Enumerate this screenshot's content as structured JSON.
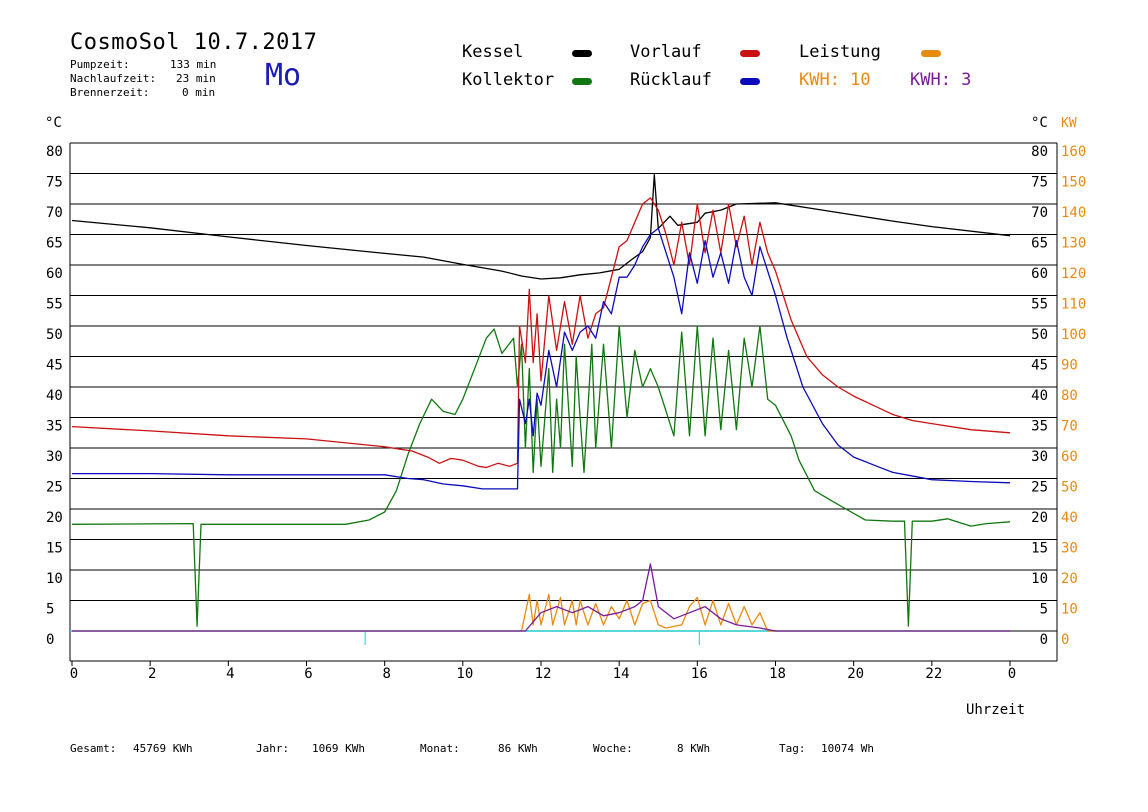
{
  "header": {
    "title": "CosmoSol 10.7.2017",
    "day": "Mo",
    "stats": [
      {
        "label": "Pumpzeit:",
        "value": "133 min"
      },
      {
        "label": "Nachlaufzeit:",
        "value": "23 min"
      },
      {
        "label": "Brennerzeit:",
        "value": "0 min"
      }
    ]
  },
  "legend": {
    "kessel": "Kessel",
    "kollektor": "Kollektor",
    "vorlauf": "Vorlauf",
    "ruecklauf": "Rücklauf",
    "leistung": "Leistung",
    "kwh1": "KWH: 10",
    "kwh2": "KWH: 3"
  },
  "footer": {
    "gesamt_label": "Gesamt:",
    "gesamt_value": "45769 KWh",
    "jahr_label": "Jahr:",
    "jahr_value": "1069 KWh",
    "monat_label": "Monat:",
    "monat_value": "86 KWh",
    "woche_label": "Woche:",
    "woche_value": "8 KWh",
    "tag_label": "Tag:",
    "tag_value": "10074 Wh"
  },
  "colors": {
    "kessel": "#000000",
    "kollektor": "#117711",
    "vorlauf": "#cc1111",
    "ruecklauf": "#0b0bbb",
    "leistung": "#e88a10",
    "kwh2": "#7a1a9a",
    "zero_line": "#22cccc"
  },
  "chart_data": {
    "type": "line",
    "xlabel": "Uhrzeit",
    "ylabel_left": "°C",
    "ylabel_right": "°C",
    "ylabel_right2": "KW",
    "xlim": [
      0,
      24
    ],
    "ylim": [
      0,
      80
    ],
    "x_ticks": [
      "0",
      "2",
      "4",
      "6",
      "8",
      "10",
      "12",
      "14",
      "16",
      "18",
      "20",
      "22",
      "0"
    ],
    "y_ticks": [
      "0",
      "5",
      "10",
      "15",
      "20",
      "25",
      "30",
      "35",
      "40",
      "45",
      "50",
      "55",
      "60",
      "65",
      "70",
      "75",
      "80"
    ],
    "y2_ticks": [
      "0",
      "10",
      "20",
      "30",
      "40",
      "50",
      "60",
      "70",
      "80",
      "90",
      "100",
      "110",
      "120",
      "130",
      "140",
      "150",
      "160"
    ],
    "grid": true,
    "series": [
      {
        "name": "Kessel",
        "points": [
          [
            0,
            67.3
          ],
          [
            2,
            66.1
          ],
          [
            4,
            64.6
          ],
          [
            6,
            63.2
          ],
          [
            8,
            61.9
          ],
          [
            9,
            61.3
          ],
          [
            10,
            60.1
          ],
          [
            11,
            59.0
          ],
          [
            11.5,
            58.2
          ],
          [
            12,
            57.7
          ],
          [
            12.5,
            57.9
          ],
          [
            13,
            58.4
          ],
          [
            13.5,
            58.7
          ],
          [
            14,
            59.3
          ],
          [
            14.3,
            60.8
          ],
          [
            14.6,
            62.2
          ],
          [
            14.8,
            64.5
          ],
          [
            14.9,
            74.8
          ],
          [
            15.0,
            66.0
          ],
          [
            15.3,
            68.0
          ],
          [
            15.5,
            66.5
          ],
          [
            16,
            67.0
          ],
          [
            16.2,
            68.5
          ],
          [
            16.6,
            69.0
          ],
          [
            17,
            70.0
          ],
          [
            18,
            70.2
          ],
          [
            19,
            69.2
          ],
          [
            20,
            68.2
          ],
          [
            21,
            67.2
          ],
          [
            22,
            66.3
          ],
          [
            24,
            64.8
          ]
        ]
      },
      {
        "name": "Kollektor",
        "points": [
          [
            0,
            17.5
          ],
          [
            3.1,
            17.6
          ],
          [
            3.2,
            0.8
          ],
          [
            3.3,
            17.5
          ],
          [
            7,
            17.5
          ],
          [
            7.6,
            18.2
          ],
          [
            8,
            19.5
          ],
          [
            8.3,
            23
          ],
          [
            8.6,
            29
          ],
          [
            8.9,
            34
          ],
          [
            9.2,
            38
          ],
          [
            9.5,
            36
          ],
          [
            9.8,
            35.5
          ],
          [
            10,
            38
          ],
          [
            10.3,
            43
          ],
          [
            10.6,
            48
          ],
          [
            10.8,
            49.5
          ],
          [
            11,
            45.5
          ],
          [
            11.3,
            48
          ],
          [
            11.4,
            40
          ],
          [
            11.5,
            47
          ],
          [
            11.6,
            30
          ],
          [
            11.7,
            43
          ],
          [
            11.8,
            26
          ],
          [
            11.9,
            38
          ],
          [
            12,
            27
          ],
          [
            12.2,
            43
          ],
          [
            12.3,
            26
          ],
          [
            12.4,
            38
          ],
          [
            12.5,
            30
          ],
          [
            12.6,
            47
          ],
          [
            12.8,
            27
          ],
          [
            12.9,
            45
          ],
          [
            13,
            35
          ],
          [
            13.1,
            26
          ],
          [
            13.3,
            47
          ],
          [
            13.4,
            30
          ],
          [
            13.6,
            47
          ],
          [
            13.8,
            30
          ],
          [
            14,
            50
          ],
          [
            14.2,
            35
          ],
          [
            14.4,
            46
          ],
          [
            14.6,
            40
          ],
          [
            14.8,
            43
          ],
          [
            15,
            40
          ],
          [
            15.2,
            36
          ],
          [
            15.4,
            32
          ],
          [
            15.6,
            49
          ],
          [
            15.8,
            32
          ],
          [
            16,
            50
          ],
          [
            16.2,
            32
          ],
          [
            16.4,
            48
          ],
          [
            16.6,
            33
          ],
          [
            16.8,
            46
          ],
          [
            17,
            33
          ],
          [
            17.2,
            48
          ],
          [
            17.4,
            40
          ],
          [
            17.6,
            50
          ],
          [
            17.8,
            38
          ],
          [
            18,
            37
          ],
          [
            18.4,
            32
          ],
          [
            18.6,
            28
          ],
          [
            19,
            23
          ],
          [
            19.4,
            21.5
          ],
          [
            19.8,
            20
          ],
          [
            20.3,
            18.2
          ],
          [
            21,
            18
          ],
          [
            21.3,
            18
          ],
          [
            21.4,
            0.8
          ],
          [
            21.5,
            18
          ],
          [
            22,
            18
          ],
          [
            22.4,
            18.4
          ],
          [
            23,
            17.2
          ],
          [
            23.4,
            17.6
          ],
          [
            24,
            17.9
          ]
        ]
      },
      {
        "name": "Vorlauf",
        "points": [
          [
            0,
            33.5
          ],
          [
            2,
            32.8
          ],
          [
            4,
            32
          ],
          [
            6,
            31.5
          ],
          [
            8,
            30.2
          ],
          [
            8.7,
            29.5
          ],
          [
            9.1,
            28.5
          ],
          [
            9.4,
            27.5
          ],
          [
            9.7,
            28.3
          ],
          [
            10,
            28
          ],
          [
            10.4,
            27
          ],
          [
            10.6,
            26.8
          ],
          [
            10.9,
            27.5
          ],
          [
            11.2,
            27
          ],
          [
            11.4,
            27.5
          ],
          [
            11.45,
            50
          ],
          [
            11.6,
            44
          ],
          [
            11.7,
            56
          ],
          [
            11.8,
            44
          ],
          [
            11.9,
            52
          ],
          [
            12,
            41
          ],
          [
            12.2,
            55
          ],
          [
            12.4,
            46
          ],
          [
            12.6,
            54
          ],
          [
            12.8,
            47
          ],
          [
            13,
            55
          ],
          [
            13.2,
            48
          ],
          [
            13.4,
            52
          ],
          [
            13.6,
            53
          ],
          [
            13.8,
            58
          ],
          [
            14,
            63
          ],
          [
            14.2,
            64
          ],
          [
            14.4,
            67
          ],
          [
            14.6,
            70
          ],
          [
            14.8,
            71
          ],
          [
            15,
            69
          ],
          [
            15.2,
            65
          ],
          [
            15.4,
            60
          ],
          [
            15.6,
            67
          ],
          [
            15.8,
            60
          ],
          [
            16,
            70
          ],
          [
            16.2,
            62
          ],
          [
            16.4,
            69
          ],
          [
            16.6,
            62
          ],
          [
            16.8,
            70
          ],
          [
            17,
            63
          ],
          [
            17.2,
            68
          ],
          [
            17.4,
            60
          ],
          [
            17.6,
            67
          ],
          [
            17.8,
            62
          ],
          [
            18,
            59
          ],
          [
            18.4,
            51
          ],
          [
            18.8,
            45
          ],
          [
            19.2,
            42
          ],
          [
            19.6,
            40
          ],
          [
            20,
            38.5
          ],
          [
            20.5,
            37
          ],
          [
            21,
            35.5
          ],
          [
            21.5,
            34.5
          ],
          [
            22,
            34
          ],
          [
            23,
            33
          ],
          [
            24,
            32.5
          ]
        ]
      },
      {
        "name": "Rücklauf",
        "points": [
          [
            0,
            25.8
          ],
          [
            2,
            25.8
          ],
          [
            4,
            25.6
          ],
          [
            6,
            25.6
          ],
          [
            8,
            25.6
          ],
          [
            8.6,
            25
          ],
          [
            9,
            24.8
          ],
          [
            9.5,
            24.1
          ],
          [
            10,
            23.8
          ],
          [
            10.5,
            23.3
          ],
          [
            11.4,
            23.3
          ],
          [
            11.45,
            38
          ],
          [
            11.6,
            34
          ],
          [
            11.7,
            38
          ],
          [
            11.8,
            32
          ],
          [
            11.9,
            39
          ],
          [
            12,
            37
          ],
          [
            12.2,
            46
          ],
          [
            12.4,
            40
          ],
          [
            12.6,
            49
          ],
          [
            12.8,
            46
          ],
          [
            13,
            49
          ],
          [
            13.2,
            50
          ],
          [
            13.4,
            48
          ],
          [
            13.6,
            54
          ],
          [
            13.8,
            52
          ],
          [
            14,
            58
          ],
          [
            14.2,
            58
          ],
          [
            14.4,
            60
          ],
          [
            14.6,
            63
          ],
          [
            14.8,
            65
          ],
          [
            15,
            66
          ],
          [
            15.2,
            62
          ],
          [
            15.4,
            58
          ],
          [
            15.6,
            52
          ],
          [
            15.8,
            62
          ],
          [
            16,
            57
          ],
          [
            16.2,
            64
          ],
          [
            16.4,
            58
          ],
          [
            16.6,
            62
          ],
          [
            16.8,
            57
          ],
          [
            17,
            64
          ],
          [
            17.2,
            58
          ],
          [
            17.4,
            55
          ],
          [
            17.6,
            63
          ],
          [
            17.8,
            59
          ],
          [
            18,
            55
          ],
          [
            18.3,
            48
          ],
          [
            18.7,
            40
          ],
          [
            19.2,
            34
          ],
          [
            19.6,
            30.5
          ],
          [
            20,
            28.5
          ],
          [
            20.6,
            27
          ],
          [
            21,
            26
          ],
          [
            21.6,
            25.3
          ],
          [
            22,
            24.8
          ],
          [
            23,
            24.5
          ],
          [
            24,
            24.3
          ]
        ]
      },
      {
        "name": "Leistung",
        "points": [
          [
            0,
            0
          ],
          [
            11.5,
            0
          ],
          [
            11.6,
            3
          ],
          [
            11.7,
            6
          ],
          [
            11.8,
            1
          ],
          [
            11.9,
            5
          ],
          [
            12,
            1
          ],
          [
            12.2,
            6
          ],
          [
            12.3,
            1
          ],
          [
            12.5,
            5.5
          ],
          [
            12.6,
            1
          ],
          [
            12.8,
            5
          ],
          [
            12.9,
            1
          ],
          [
            13,
            5
          ],
          [
            13.2,
            1
          ],
          [
            13.4,
            4.5
          ],
          [
            13.6,
            1
          ],
          [
            13.8,
            4
          ],
          [
            14,
            2
          ],
          [
            14.2,
            5
          ],
          [
            14.4,
            1
          ],
          [
            14.6,
            4.5
          ],
          [
            14.8,
            5
          ],
          [
            15,
            1
          ],
          [
            15.2,
            0.5
          ],
          [
            15.6,
            1
          ],
          [
            15.8,
            4
          ],
          [
            16,
            5.5
          ],
          [
            16.2,
            1
          ],
          [
            16.4,
            5
          ],
          [
            16.6,
            1
          ],
          [
            16.8,
            4.5
          ],
          [
            17,
            1
          ],
          [
            17.2,
            4
          ],
          [
            17.4,
            1
          ],
          [
            17.6,
            3
          ],
          [
            17.8,
            0
          ],
          [
            24,
            0
          ]
        ]
      },
      {
        "name": "KWH: 3",
        "points": [
          [
            0,
            0
          ],
          [
            11.6,
            0
          ],
          [
            12,
            3
          ],
          [
            12.4,
            4
          ],
          [
            12.8,
            3
          ],
          [
            13.2,
            4
          ],
          [
            13.6,
            2.5
          ],
          [
            14,
            3
          ],
          [
            14.4,
            4
          ],
          [
            14.6,
            5
          ],
          [
            14.8,
            11
          ],
          [
            15,
            4
          ],
          [
            15.4,
            2
          ],
          [
            15.8,
            3
          ],
          [
            16.2,
            4
          ],
          [
            16.6,
            2
          ],
          [
            17,
            1
          ],
          [
            17.6,
            0.5
          ],
          [
            18,
            0
          ],
          [
            24,
            0
          ]
        ]
      }
    ]
  }
}
